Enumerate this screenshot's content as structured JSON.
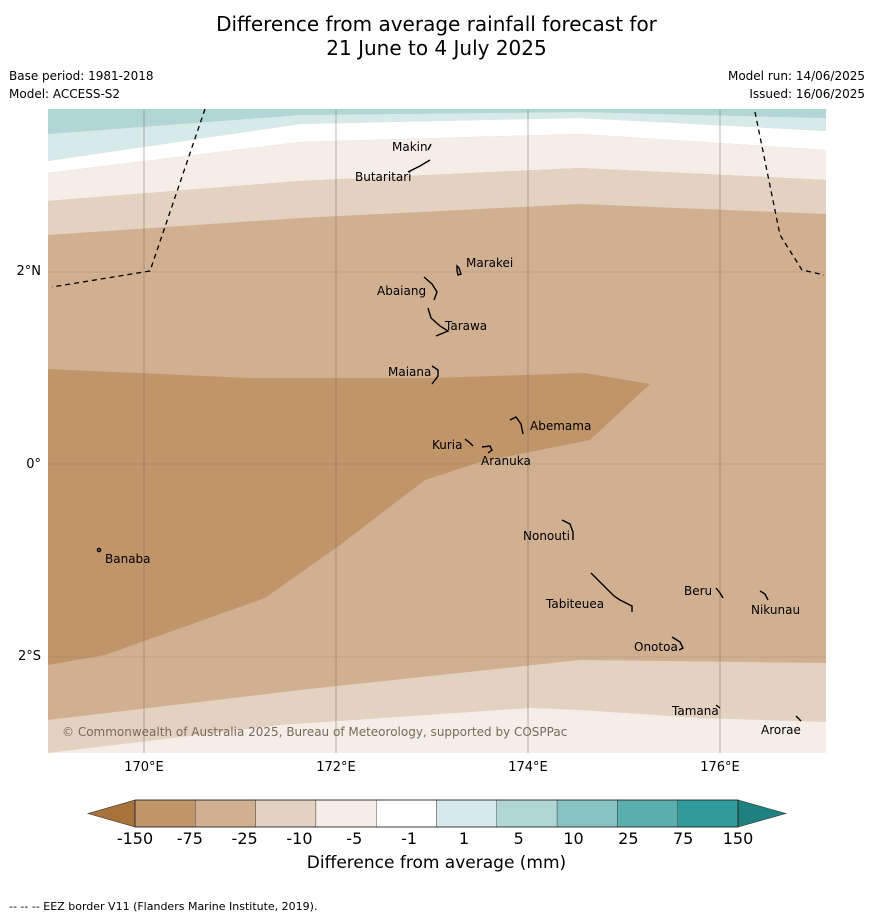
{
  "title_line1": "Difference from average rainfall forecast for",
  "title_line2": "21 June to 4 July 2025",
  "base_period": "Base period: 1981-2018",
  "model": "Model: ACCESS-S2",
  "model_run": "Model run: 14/06/2025",
  "issued": "Issued: 16/06/2025",
  "lat_labels": [
    "2°N",
    "0°",
    "2°S"
  ],
  "lon_labels": [
    "170°E",
    "172°E",
    "174°E",
    "176°E"
  ],
  "places": {
    "makin": "Makin",
    "butaritari": "Butaritari",
    "marakei": "Marakei",
    "abaiang": "Abaiang",
    "tarawa": "Tarawa",
    "maiana": "Maiana",
    "abemama": "Abemama",
    "kuria": "Kuria",
    "aranuka": "Aranuka",
    "banaba": "Banaba",
    "nonouti": "Nonouti",
    "tabiteuea": "Tabiteuea",
    "beru": "Beru",
    "nikunau": "Nikunau",
    "onotoa": "Onotoa",
    "tamana": "Tamana",
    "arorae": "Arorae"
  },
  "copyright": "© Commonwealth of Australia 2025, Bureau of Meteorology, supported by COSPPac",
  "colorbar": {
    "ticks": [
      "-150",
      "-75",
      "-25",
      "-10",
      "-5",
      "-1",
      "1",
      "5",
      "10",
      "25",
      "75",
      "150"
    ],
    "colors": [
      "#a8733b",
      "#c0956a",
      "#d1b092",
      "#e3d1c1",
      "#f4ede8",
      "#ffffff",
      "#d6eaea",
      "#b0d6d6",
      "#86c2c2",
      "#5aaeae",
      "#319a9a",
      "#1f8080"
    ],
    "label": "Difference from average (mm)"
  },
  "footnote": "--  --  -- EEZ border V11 (Flanders Marine Institute, 2019)."
}
